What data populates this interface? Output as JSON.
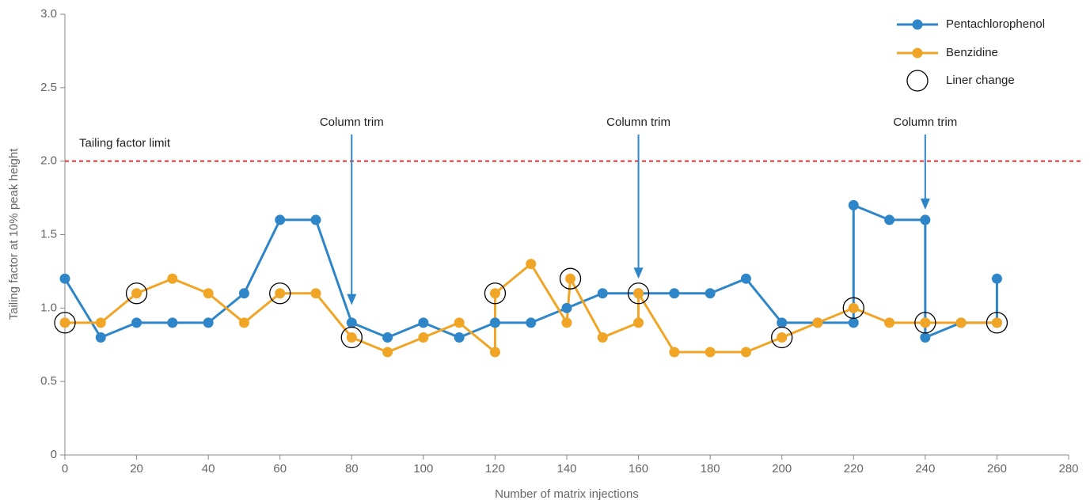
{
  "chart_data": {
    "type": "line",
    "x_label": "Number of matrix injections",
    "y_label": "Tailing factor at 10% peak height",
    "xlim": [
      0,
      280
    ],
    "ylim": [
      0,
      3
    ],
    "xticks": [
      0,
      20,
      40,
      60,
      80,
      100,
      120,
      140,
      160,
      180,
      200,
      220,
      240,
      260,
      280
    ],
    "yticks": [
      0,
      0.5,
      {
        "value": 1,
        "label": "1.0"
      },
      1.5,
      {
        "value": 2,
        "label": "2.0"
      },
      2.5,
      {
        "value": 3,
        "label": "3.0"
      }
    ],
    "series": [
      {
        "name": "Pentachlorophenol",
        "color": "#2e86c8",
        "x": [
          0,
          10,
          20,
          30,
          40,
          50,
          60,
          70,
          80,
          90,
          100,
          110,
          120,
          130,
          140,
          150,
          160,
          170,
          180,
          190,
          200,
          210,
          220,
          220,
          230,
          240,
          240,
          250,
          260,
          260
        ],
        "values": [
          1.2,
          0.8,
          0.9,
          0.9,
          0.9,
          1.1,
          1.6,
          1.6,
          0.9,
          0.8,
          0.9,
          0.8,
          0.9,
          0.9,
          1.0,
          1.1,
          1.1,
          1.1,
          1.1,
          1.2,
          0.9,
          0.9,
          0.9,
          1.7,
          1.6,
          1.6,
          0.8,
          0.9,
          0.9,
          1.2
        ]
      },
      {
        "name": "Benzidine",
        "color": "#f0a526",
        "x": [
          0,
          10,
          20,
          30,
          40,
          50,
          60,
          70,
          80,
          90,
          100,
          110,
          120,
          120,
          130,
          140,
          141,
          150,
          160,
          160,
          170,
          180,
          190,
          200,
          210,
          220,
          230,
          240,
          250,
          260
        ],
        "values": [
          0.9,
          0.9,
          1.1,
          1.2,
          1.1,
          0.9,
          1.1,
          1.1,
          0.8,
          0.7,
          0.8,
          0.9,
          0.7,
          1.1,
          1.3,
          0.9,
          1.2,
          0.8,
          0.9,
          1.1,
          0.7,
          0.7,
          0.7,
          0.8,
          0.9,
          1.0,
          0.9,
          0.9,
          0.9,
          0.9
        ]
      },
      {
        "name": "Liner change",
        "color": "#000000",
        "marker_only": true,
        "x": [
          0,
          20,
          60,
          80,
          120,
          141,
          160,
          200,
          220,
          240,
          260
        ],
        "values": [
          0.9,
          1.1,
          1.1,
          0.8,
          1.1,
          1.2,
          1.1,
          0.8,
          1.0,
          0.9,
          0.9
        ]
      }
    ],
    "reference_line": {
      "value": 2,
      "label": "Tailing factor limit",
      "color": "#e03030"
    },
    "annotations": [
      {
        "text": "Column trim",
        "x": 80,
        "y": 1.02
      },
      {
        "text": "Column trim",
        "x": 160,
        "y": 1.2
      },
      {
        "text": "Column trim",
        "x": 240,
        "y": 1.67
      }
    ],
    "legend": "top-right"
  }
}
